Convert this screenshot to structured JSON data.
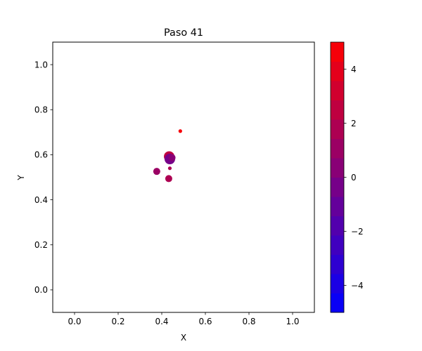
{
  "chart_data": {
    "type": "scatter",
    "title": "Paso 41",
    "xlabel": "X",
    "ylabel": "Y",
    "xlim": [
      -0.1,
      1.1
    ],
    "ylim": [
      -0.1,
      1.1
    ],
    "xticks": [
      "0.0",
      "0.2",
      "0.4",
      "0.6",
      "0.8",
      "1.0"
    ],
    "yticks": [
      "0.0",
      "0.2",
      "0.4",
      "0.6",
      "0.8",
      "1.0"
    ],
    "grid": false,
    "colorbar": {
      "range": [
        -5,
        5
      ],
      "levels": 14,
      "ticks": [
        "−4",
        "−2",
        "0",
        "2",
        "4"
      ],
      "color_low": "#0000ff",
      "color_high": "#ff0000"
    },
    "points": [
      {
        "x": 0.485,
        "y": 0.705,
        "value": 4.6,
        "size": "small"
      },
      {
        "x": 0.434,
        "y": 0.592,
        "value": 2.2,
        "size": "large"
      },
      {
        "x": 0.437,
        "y": 0.581,
        "value": -0.4,
        "size": "large"
      },
      {
        "x": 0.447,
        "y": 0.587,
        "value": 0.5,
        "size": "medium"
      },
      {
        "x": 0.437,
        "y": 0.54,
        "value": 1.5,
        "size": "small"
      },
      {
        "x": 0.377,
        "y": 0.526,
        "value": 0.8,
        "size": "medium"
      },
      {
        "x": 0.432,
        "y": 0.494,
        "value": 1.6,
        "size": "medium"
      }
    ]
  }
}
